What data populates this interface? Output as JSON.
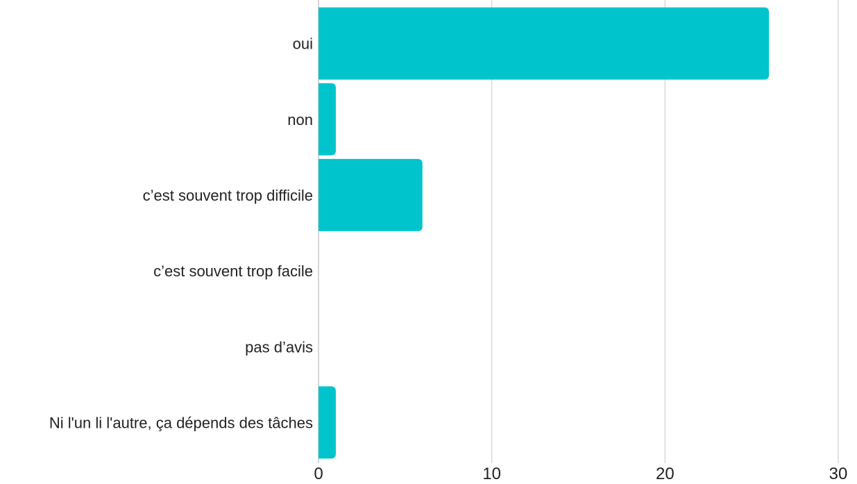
{
  "chart_data": {
    "type": "bar",
    "orientation": "horizontal",
    "categories": [
      "oui",
      "non",
      "c’est souvent trop difficile",
      "c’est souvent trop facile",
      "pas d’avis",
      "Ni l'un li l'autre, ça dépends des tâches"
    ],
    "values": [
      26,
      1,
      6,
      0,
      0,
      1
    ],
    "xlim": [
      0,
      30
    ],
    "xticks": [
      "0",
      "10",
      "20",
      "30"
    ],
    "grid": true,
    "bar_color": "#00c4cc",
    "title": "",
    "xlabel": "",
    "ylabel": ""
  }
}
